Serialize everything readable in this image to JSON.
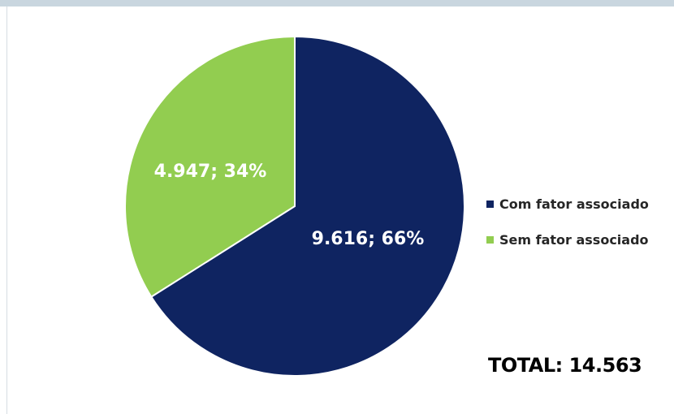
{
  "chart_data": {
    "type": "pie",
    "slices": [
      {
        "name": "Com fator associado",
        "value": 9616,
        "percent": 66,
        "label": "9.616; 66%",
        "color": "#0f2461"
      },
      {
        "name": "Sem fator associado",
        "value": 4947,
        "percent": 34,
        "label": "4.947; 34%",
        "color": "#92cd50"
      }
    ],
    "legend_position": "right",
    "total_text": "TOTAL: 14.563"
  }
}
